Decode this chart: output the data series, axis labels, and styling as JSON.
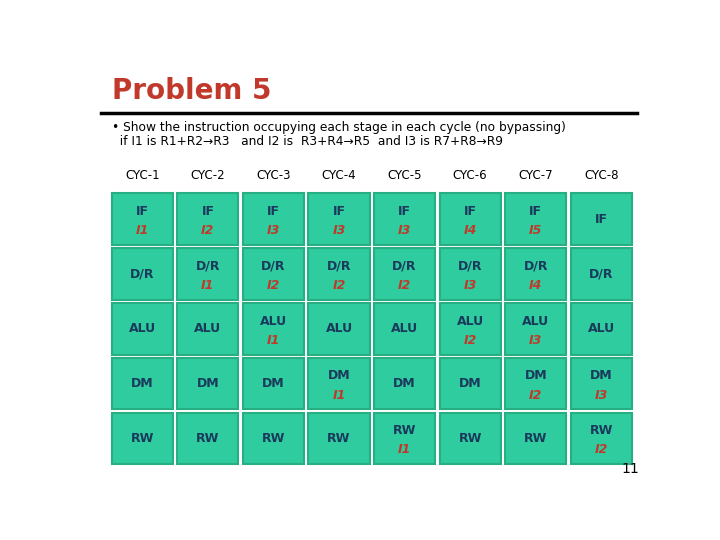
{
  "title": "Problem 5",
  "bullet_line1": "• Show the instruction occupying each stage in each cycle (no bypassing)",
  "bullet_line2": "  if I1 is R1+R2→R3   and I2 is  R3+R4→R5  and I3 is R7+R8→R9",
  "col_headers": [
    "CYC-1",
    "CYC-2",
    "CYC-3",
    "CYC-4",
    "CYC-5",
    "CYC-6",
    "CYC-7",
    "CYC-8"
  ],
  "row_labels": [
    "IF",
    "D/R",
    "ALU",
    "DM",
    "RW"
  ],
  "cell_color": "#2ecc9e",
  "cell_border_color": "#27ae82",
  "label_color": "#1a3a5c",
  "sub_color": "#c0392b",
  "bg_color": "#ffffff",
  "title_color": "#c0392b",
  "page_number": "11",
  "cells": [
    [
      [
        "IF",
        "I1"
      ],
      [
        "IF",
        "I2"
      ],
      [
        "IF",
        "I3"
      ],
      [
        "IF",
        "I3"
      ],
      [
        "IF",
        "I3"
      ],
      [
        "IF",
        "I4"
      ],
      [
        "IF",
        "I5"
      ],
      [
        "IF",
        ""
      ]
    ],
    [
      [
        "D/R",
        ""
      ],
      [
        "D/R",
        "I1"
      ],
      [
        "D/R",
        "I2"
      ],
      [
        "D/R",
        "I2"
      ],
      [
        "D/R",
        "I2"
      ],
      [
        "D/R",
        "I3"
      ],
      [
        "D/R",
        "I4"
      ],
      [
        "D/R",
        ""
      ]
    ],
    [
      [
        "ALU",
        ""
      ],
      [
        "ALU",
        ""
      ],
      [
        "ALU",
        "I1"
      ],
      [
        "ALU",
        ""
      ],
      [
        "ALU",
        ""
      ],
      [
        "ALU",
        "I2"
      ],
      [
        "ALU",
        "I3"
      ],
      [
        "ALU",
        ""
      ]
    ],
    [
      [
        "DM",
        ""
      ],
      [
        "DM",
        ""
      ],
      [
        "DM",
        ""
      ],
      [
        "DM",
        "I1"
      ],
      [
        "DM",
        ""
      ],
      [
        "DM",
        ""
      ],
      [
        "DM",
        "I2"
      ],
      [
        "DM",
        "I3"
      ]
    ],
    [
      [
        "RW",
        ""
      ],
      [
        "RW",
        ""
      ],
      [
        "RW",
        ""
      ],
      [
        "RW",
        ""
      ],
      [
        "RW",
        "I1"
      ],
      [
        "RW",
        ""
      ],
      [
        "RW",
        ""
      ],
      [
        "RW",
        "I2"
      ]
    ]
  ]
}
